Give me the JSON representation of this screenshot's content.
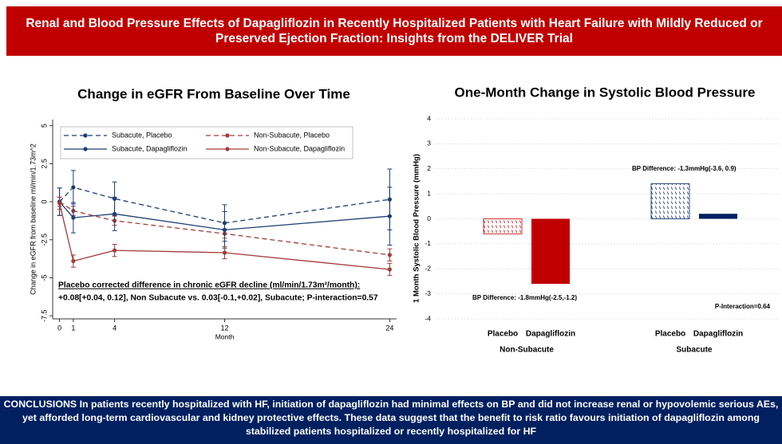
{
  "header": {
    "title": "Renal and Blood Pressure Effects of Dapagliflozin in Recently Hospitalized Patients with Heart Failure with Mildly Reduced or Preserved Ejection Fraction: Insights from the DELIVER Trial"
  },
  "chart_data": [
    {
      "type": "line",
      "title": "Change in eGFR From Baseline Over Time",
      "x_label": "Month",
      "y_label": "Change in eGFR from baseline ml/min/1.73m^2",
      "x": [
        0,
        1,
        4,
        12,
        24
      ],
      "xlim": [
        -0.5,
        24.5
      ],
      "xticks": [
        0,
        1,
        4,
        12,
        24
      ],
      "ylim": [
        -7.7,
        5.4
      ],
      "yticks": [
        5,
        2.5,
        0,
        -2.5,
        -5,
        -7.5
      ],
      "series": [
        {
          "name": "Subacute, Placebo",
          "color": "#1f3c73",
          "dashed": true,
          "values": [
            0,
            0.95,
            0.2,
            -1.4,
            0.15
          ],
          "errors": [
            0.9,
            1.1,
            1.1,
            1.2,
            2.0
          ]
        },
        {
          "name": "Non-Subacute, Placebo",
          "color": "#a33a3a",
          "dashed": true,
          "values": [
            0,
            -0.6,
            -1.25,
            -2.1,
            -3.5
          ],
          "errors": [
            0.3,
            0.3,
            0.3,
            0.3,
            0.4
          ]
        },
        {
          "name": "Subacute, Dapagliflozin",
          "color": "#1f3c73",
          "dashed": false,
          "values": [
            0,
            -1.05,
            -0.8,
            -1.85,
            -0.95
          ],
          "errors": [
            0.9,
            1.0,
            1.1,
            1.2,
            1.9
          ]
        },
        {
          "name": "Non-Subacute, Dapagliflozin",
          "color": "#a33a3a",
          "dashed": false,
          "values": [
            -0.1,
            -3.9,
            -3.2,
            -3.35,
            -4.45
          ],
          "errors": [
            0.4,
            0.4,
            0.4,
            0.4,
            0.4
          ]
        }
      ],
      "annotation": {
        "heading": "Placebo corrected difference in chronic eGFR decline (ml/min/1.73m²/month):",
        "text": "+0.08[+0.04, 0.12], Non Subacute vs. 0.03[-0.1,+0.02], Subacute; P-interaction=0.57"
      }
    },
    {
      "type": "bar",
      "title": "One-Month Change in Systolic Blood Pressure",
      "y_label": "1 Month Systolic Blood Pressure (mmHg)",
      "categories": [
        "Non-Subacute",
        "Subacute"
      ],
      "group_colors": [
        "#c00000",
        "#002060"
      ],
      "ylim": [
        -4,
        4
      ],
      "yticks": [
        4,
        3,
        2,
        1,
        0,
        -1,
        -2,
        -3,
        -4
      ],
      "series": [
        {
          "name": "Placebo",
          "hatched": true,
          "values": [
            -0.6,
            1.4
          ]
        },
        {
          "name": "Dapagliflozin",
          "hatched": false,
          "values": [
            -2.6,
            0.2
          ]
        }
      ],
      "annotations": [
        "BP Difference: -1.8mmHg(-2.5,-1.2)",
        "BP Difference: -1.3mmHg(-3.6, 0.9)",
        "P-Interaction=0.64"
      ]
    }
  ],
  "footer": {
    "text": "CONCLUSIONS In patients recently hospitalized with HF, initiation of dapagliflozin had minimal effects on BP and did not increase renal or hypovolemic serious AEs, yet afforded long-term cardiovascular and kidney protective effects. These data suggest that the benefit to risk ratio favours initiation of dapagliflozin among stabilized patients hospitalized or recently hospitalized for HF"
  }
}
